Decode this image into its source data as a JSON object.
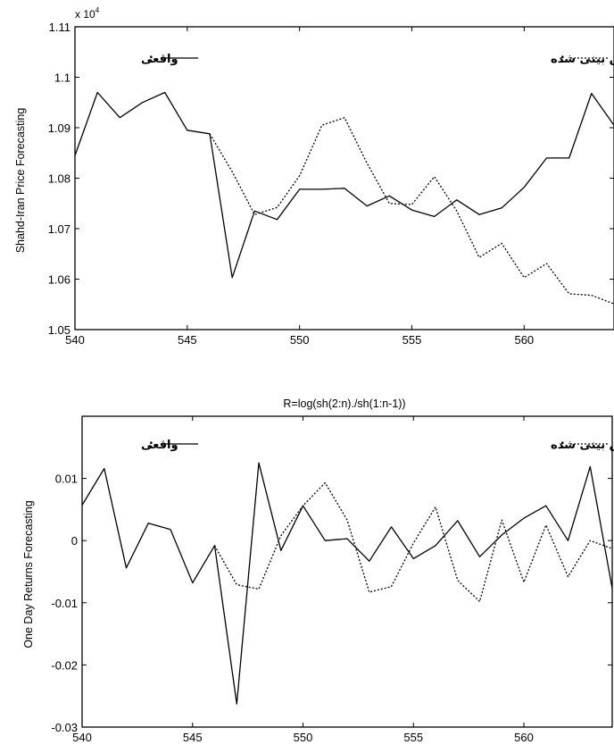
{
  "chart_data": [
    {
      "type": "line",
      "title": "",
      "xlabel": "",
      "ylabel": "Shahd-Iran Price Forecasting",
      "y_multiplier_label": "x 10",
      "y_multiplier_exponent": "4",
      "xlim": [
        540,
        564
      ],
      "ylim": [
        1.05,
        1.11
      ],
      "x_ticks": [
        540,
        545,
        550,
        555,
        560
      ],
      "x_tick_labels": [
        "540",
        "545",
        "550",
        "555",
        "560"
      ],
      "y_ticks": [
        1.05,
        1.06,
        1.07,
        1.08,
        1.09,
        1.1,
        1.11
      ],
      "y_tick_labels": [
        "1.05",
        "1.06",
        "1.07",
        "1.08",
        "1.09",
        "1.1",
        "1.11"
      ],
      "grid": false,
      "x": [
        540,
        541,
        542,
        543,
        544,
        545,
        546,
        547,
        548,
        549,
        550,
        551,
        552,
        553,
        554,
        555,
        556,
        557,
        558,
        559,
        560,
        561,
        562,
        563,
        564
      ],
      "series": [
        {
          "name": "واقعی",
          "line_style": "solid",
          "color": "#000000",
          "values": [
            1.0845,
            1.097,
            1.092,
            1.095,
            1.097,
            1.0895,
            1.0888,
            1.0603,
            1.0735,
            1.0718,
            1.0778,
            1.0778,
            1.078,
            1.0745,
            1.0765,
            1.0737,
            1.0724,
            1.0757,
            1.0728,
            1.0741,
            1.0782,
            1.084,
            1.084,
            1.0968,
            1.0905
          ]
        },
        {
          "name": "پیش بینی شده",
          "line_style": "dotted",
          "color": "#000000",
          "values": [
            null,
            null,
            null,
            null,
            null,
            null,
            1.0888,
            1.0813,
            1.0728,
            1.0742,
            1.0805,
            1.0905,
            1.092,
            1.083,
            1.075,
            1.0748,
            1.0803,
            1.0735,
            1.0643,
            1.0671,
            1.0603,
            1.0631,
            1.0571,
            1.0568,
            1.0551
          ]
        }
      ],
      "legend": [
        {
          "label": "واقعی",
          "marker": ":",
          "line_style": "solid",
          "placement": "top-left"
        },
        {
          "label": "پیش بینی شده",
          "marker": ":",
          "line_style": "dotted",
          "placement": "top-right"
        }
      ]
    },
    {
      "type": "line",
      "title": "R=log(sh(2:n)./sh(1:n-1))",
      "xlabel": "",
      "ylabel": "One Day Returns Forecasting",
      "xlim": [
        540,
        564
      ],
      "ylim": [
        -0.03,
        0.02
      ],
      "x_ticks": [
        540,
        545,
        550,
        555,
        560
      ],
      "x_tick_labels": [
        "540",
        "545",
        "550",
        "555",
        "560"
      ],
      "y_ticks": [
        -0.03,
        -0.02,
        -0.01,
        0,
        0.01
      ],
      "y_tick_labels": [
        "-0.03",
        "-0.02",
        "-0.01",
        "0",
        "0.01"
      ],
      "grid": false,
      "x": [
        540,
        541,
        542,
        543,
        544,
        545,
        546,
        547,
        548,
        549,
        550,
        551,
        552,
        553,
        554,
        555,
        556,
        557,
        558,
        559,
        560,
        561,
        562,
        563,
        564
      ],
      "series": [
        {
          "name": "واقعی",
          "line_style": "solid",
          "color": "#000000",
          "values": [
            0.0057,
            0.0116,
            -0.0044,
            0.0028,
            0.0018,
            -0.0068,
            -0.0008,
            -0.0263,
            0.0125,
            -0.0016,
            0.0056,
            0.0,
            0.0003,
            -0.0033,
            0.0022,
            -0.0029,
            -0.0008,
            0.0032,
            -0.0026,
            0.0009,
            0.0036,
            0.0056,
            0.0,
            0.0119,
            -0.0077
          ]
        },
        {
          "name": "پیش بینی شده",
          "line_style": "dotted",
          "color": "#000000",
          "values": [
            null,
            null,
            null,
            null,
            null,
            null,
            -0.0008,
            -0.0071,
            -0.0078,
            0.0008,
            0.0056,
            0.0093,
            0.0033,
            -0.0083,
            -0.0074,
            -0.0004,
            0.0054,
            -0.0064,
            -0.0098,
            0.0033,
            -0.0067,
            0.0025,
            -0.0058,
            0.0,
            -0.0013
          ]
        }
      ],
      "legend": [
        {
          "label": "واقعی",
          "marker": ":",
          "line_style": "solid",
          "placement": "top-left"
        },
        {
          "label": "پیش بینی شده",
          "marker": ":",
          "line_style": "dotted",
          "placement": "top-right"
        }
      ]
    }
  ]
}
